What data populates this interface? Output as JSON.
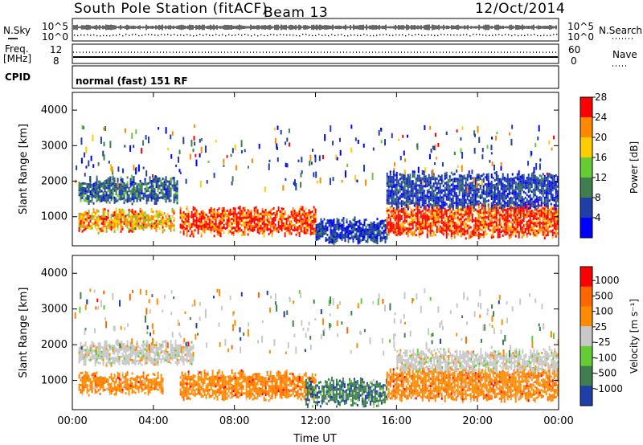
{
  "header": {
    "station": "South Pole Station (fitACF)",
    "beam": "Beam 13",
    "date": "12/Oct/2014"
  },
  "param_panels": {
    "left_labels": [
      "N.Sky",
      "Freq.",
      "[MHz]",
      "CPID"
    ],
    "right_labels": [
      "N.Search",
      "Nave"
    ],
    "noise_scale": {
      "top": "10^5",
      "bottom": "10^0"
    },
    "freq_scale": {
      "top": "12",
      "bottom": "8"
    },
    "nave_scale": {
      "top": "60",
      "bottom": "0"
    },
    "cpid_text": "normal (fast) 151 RF"
  },
  "chart_data": [
    {
      "type": "heatmap",
      "name": "power",
      "xlabel": "Time UT",
      "ylabel": "Slant Range [km]",
      "x_ticks": [
        "00:00",
        "04:00",
        "08:00",
        "12:00",
        "16:00",
        "20:00",
        "00:00"
      ],
      "xlim_hours": [
        0,
        24
      ],
      "ylim": [
        180,
        4500
      ],
      "y_ticks": [
        1000,
        2000,
        3000,
        4000
      ],
      "colorbar": {
        "label": "Power [dB]",
        "ticks": [
          "4",
          "8",
          "12",
          "16",
          "20",
          "24",
          "28"
        ],
        "colors": [
          "#0000ff",
          "#1f3fa8",
          "#3f7f4f",
          "#66cc33",
          "#ffcc00",
          "#ff8800",
          "#ff0000"
        ]
      },
      "bands": [
        {
          "t": [
            0.3,
            5.2
          ],
          "r": [
            1450,
            2050
          ],
          "value": "low-mid"
        },
        {
          "t": [
            0.3,
            5.0
          ],
          "r": [
            650,
            1150
          ],
          "value": "mid-high"
        },
        {
          "t": [
            5.3,
            12.0
          ],
          "r": [
            550,
            1200
          ],
          "value": "high"
        },
        {
          "t": [
            12.0,
            15.5
          ],
          "r": [
            350,
            900
          ],
          "value": "low"
        },
        {
          "t": [
            15.5,
            24.0
          ],
          "r": [
            500,
            1300
          ],
          "value": "high"
        },
        {
          "t": [
            15.5,
            24.0
          ],
          "r": [
            1300,
            2200
          ],
          "value": "low"
        }
      ]
    },
    {
      "type": "heatmap",
      "name": "velocity",
      "xlabel": "Time UT",
      "ylabel": "Slant Range [km]",
      "x_ticks": [
        "00:00",
        "04:00",
        "08:00",
        "12:00",
        "16:00",
        "20:00",
        "00:00"
      ],
      "xlim_hours": [
        0,
        24
      ],
      "ylim": [
        180,
        4500
      ],
      "y_ticks": [
        1000,
        2000,
        3000,
        4000
      ],
      "colorbar": {
        "label": "Velocity [m s⁻¹]",
        "ticks": [
          "1000",
          "500",
          "100",
          "25",
          "-25",
          "-100",
          "-500",
          "-1000"
        ],
        "colors": [
          "#1f3fa8",
          "#3f7f4f",
          "#66cc33",
          "#c8c8c8",
          "#ff8c00",
          "#ff6600",
          "#ff0000"
        ]
      },
      "bands": [
        {
          "t": [
            0.3,
            6.0
          ],
          "r": [
            1500,
            2050
          ],
          "value": "ground"
        },
        {
          "t": [
            0.3,
            4.5
          ],
          "r": [
            700,
            1150
          ],
          "value": "neg"
        },
        {
          "t": [
            5.3,
            12.0
          ],
          "r": [
            550,
            1200
          ],
          "value": "neg"
        },
        {
          "t": [
            11.5,
            15.5
          ],
          "r": [
            350,
            1000
          ],
          "value": "pos"
        },
        {
          "t": [
            15.5,
            24.0
          ],
          "r": [
            500,
            1300
          ],
          "value": "neg"
        },
        {
          "t": [
            16.0,
            24.0
          ],
          "r": [
            1300,
            1800
          ],
          "value": "ground"
        }
      ]
    }
  ]
}
